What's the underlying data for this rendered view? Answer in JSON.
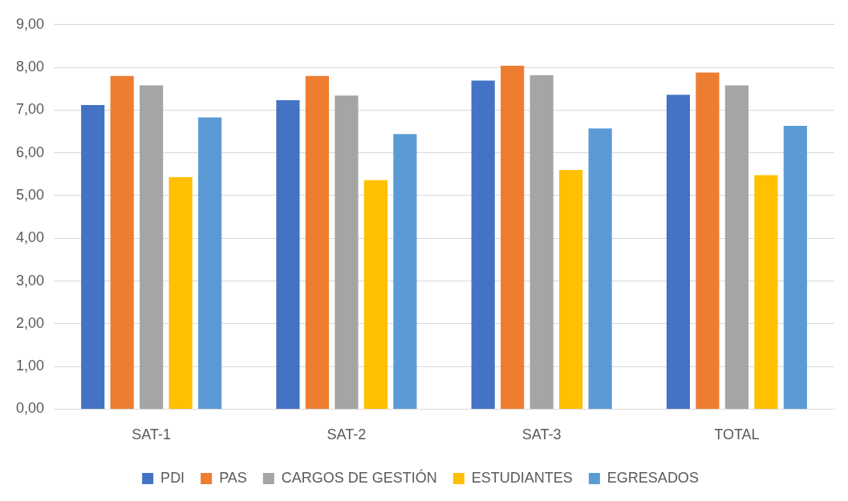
{
  "chart_data": {
    "type": "bar",
    "categories": [
      "SAT-1",
      "SAT-2",
      "SAT-3",
      "TOTAL"
    ],
    "series": [
      {
        "name": "PDI",
        "color": "#4472c4",
        "values": [
          7.12,
          7.23,
          7.69,
          7.36
        ]
      },
      {
        "name": "PAS",
        "color": "#ed7d31",
        "values": [
          7.8,
          7.8,
          8.04,
          7.88
        ]
      },
      {
        "name": "CARGOS DE GESTIÓN",
        "color": "#a5a5a5",
        "values": [
          7.58,
          7.34,
          7.82,
          7.58
        ]
      },
      {
        "name": "ESTUDIANTES",
        "color": "#ffc000",
        "values": [
          5.43,
          5.36,
          5.6,
          5.48
        ]
      },
      {
        "name": "EGRESADOS",
        "color": "#5b9bd5",
        "values": [
          6.83,
          6.44,
          6.57,
          6.63
        ]
      }
    ],
    "ylim": [
      0,
      9
    ],
    "yticks": [
      {
        "value": 0,
        "label": "0,00"
      },
      {
        "value": 1,
        "label": "1,00"
      },
      {
        "value": 2,
        "label": "2,00"
      },
      {
        "value": 3,
        "label": "3,00"
      },
      {
        "value": 4,
        "label": "4,00"
      },
      {
        "value": 5,
        "label": "5,00"
      },
      {
        "value": 6,
        "label": "6,00"
      },
      {
        "value": 7,
        "label": "7,00"
      },
      {
        "value": 8,
        "label": "8,00"
      },
      {
        "value": 9,
        "label": "9,00"
      }
    ],
    "grid": "y",
    "legend": "bottom"
  }
}
